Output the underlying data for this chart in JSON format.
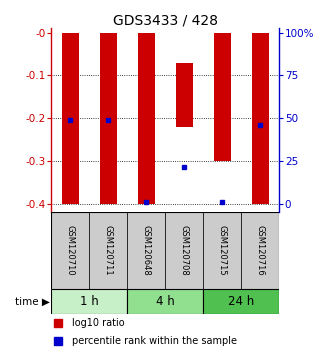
{
  "title": "GDS3433 / 428",
  "samples": [
    "GSM120710",
    "GSM120711",
    "GSM120648",
    "GSM120708",
    "GSM120715",
    "GSM120716"
  ],
  "time_groups": [
    {
      "label": "1 h",
      "samples": [
        0,
        1
      ],
      "color": "#c8f0c8"
    },
    {
      "label": "4 h",
      "samples": [
        2,
        3
      ],
      "color": "#90e090"
    },
    {
      "label": "24 h",
      "samples": [
        4,
        5
      ],
      "color": "#50c050"
    }
  ],
  "log10_ratio_bottom": [
    -0.4,
    -0.4,
    -0.4,
    -0.07,
    -0.3,
    -0.4
  ],
  "log10_ratio_top": [
    0.0,
    0.0,
    0.0,
    -0.22,
    0.0,
    0.0
  ],
  "percentile_rank": [
    -0.205,
    -0.205,
    -0.395,
    -0.315,
    -0.395,
    -0.215
  ],
  "ylim": [
    -0.42,
    0.01
  ],
  "y_ticks": [
    0.0,
    -0.1,
    -0.2,
    -0.3,
    -0.4
  ],
  "y_tick_labels": [
    "-0",
    "-0.1",
    "-0.2",
    "-0.3",
    "-0.4"
  ],
  "y2_tick_positions": [
    0.0,
    -0.1,
    -0.2,
    -0.3,
    -0.4
  ],
  "y2_tick_labels": [
    "100%",
    "75",
    "50",
    "25",
    "0"
  ],
  "bar_color": "#cc0000",
  "dot_color": "#0000cc",
  "left_axis_color": "#cc0000",
  "right_axis_color": "#0000cc",
  "grid_color": "#000000",
  "sample_bg_color": "#cccccc",
  "bar_width": 0.45
}
